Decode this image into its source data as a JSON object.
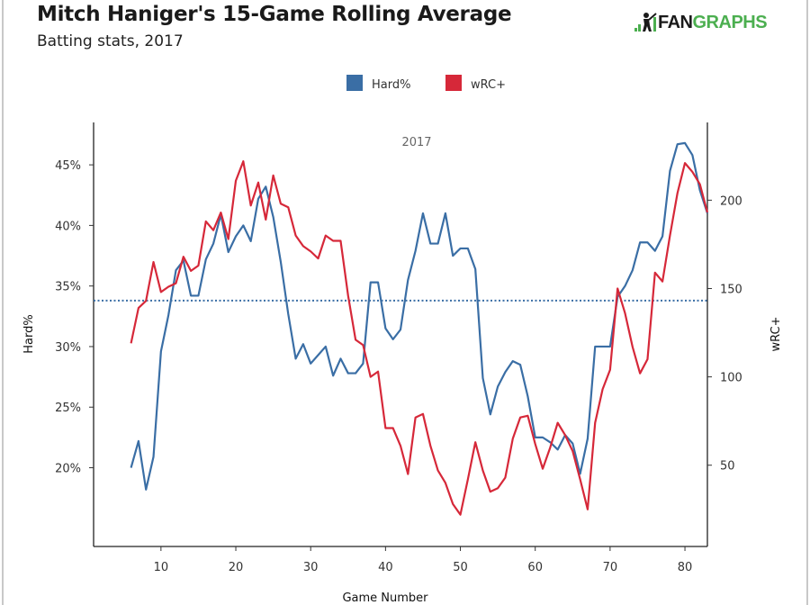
{
  "header": {
    "title": "Mitch Haniger's 15-Game Rolling Average",
    "subtitle": "Batting stats, 2017",
    "logo_text_dark": "FAN",
    "logo_text_green": "GRAPHS"
  },
  "colors": {
    "hard": "#3a6ea5",
    "wrc": "#d62839",
    "logo_green": "#4caf50"
  },
  "chart_data": {
    "type": "line",
    "title": "Mitch Haniger's 15-Game Rolling Average",
    "subtitle": "Batting stats, 2017",
    "facet_label": "2017",
    "xlabel": "Game Number",
    "ylabel_left": "Hard%",
    "ylabel_right": "wRC+",
    "legend_position": "top-center",
    "grid": false,
    "xlim": [
      1,
      83
    ],
    "ylim_left": [
      13.5,
      48.5
    ],
    "ylim_right": [
      4,
      244
    ],
    "x_ticks": [
      10,
      20,
      30,
      40,
      50,
      60,
      70,
      80
    ],
    "y_ticks_left": [
      {
        "value": 20,
        "label": "20%"
      },
      {
        "value": 25,
        "label": "25%"
      },
      {
        "value": 30,
        "label": "30%"
      },
      {
        "value": 35,
        "label": "35%"
      },
      {
        "value": 40,
        "label": "40%"
      },
      {
        "value": 45,
        "label": "45%"
      }
    ],
    "y_ticks_right": [
      50,
      100,
      150,
      200
    ],
    "reference_line": {
      "series": "Hard%",
      "value": 33.8,
      "style": "dotted"
    },
    "x": [
      6,
      7,
      8,
      9,
      10,
      11,
      12,
      13,
      14,
      15,
      16,
      17,
      18,
      19,
      20,
      21,
      22,
      23,
      24,
      25,
      26,
      27,
      28,
      29,
      30,
      31,
      32,
      33,
      34,
      35,
      36,
      37,
      38,
      39,
      40,
      41,
      42,
      43,
      44,
      45,
      46,
      47,
      48,
      49,
      50,
      51,
      52,
      53,
      54,
      55,
      56,
      57,
      58,
      59,
      60,
      61,
      62,
      63,
      64,
      65,
      66,
      67,
      68,
      69,
      70,
      71,
      72,
      73,
      74,
      75,
      76,
      77,
      78,
      79,
      80,
      81,
      82,
      83
    ],
    "series": [
      {
        "name": "Hard%",
        "axis": "left",
        "values": [
          20.0,
          22.2,
          18.2,
          20.9,
          29.6,
          32.6,
          36.3,
          37.1,
          34.2,
          34.2,
          37.2,
          38.5,
          40.9,
          37.8,
          39.1,
          40.0,
          38.7,
          42.2,
          43.2,
          40.7,
          37.0,
          32.7,
          29.0,
          30.2,
          28.6,
          29.3,
          30.0,
          27.6,
          29.0,
          27.8,
          27.8,
          28.6,
          35.3,
          35.3,
          31.5,
          30.6,
          31.4,
          35.5,
          37.9,
          41.0,
          38.5,
          38.5,
          41.0,
          37.5,
          38.1,
          38.1,
          36.4,
          27.4,
          24.4,
          26.7,
          27.9,
          28.8,
          28.5,
          25.9,
          22.5,
          22.5,
          22.1,
          21.5,
          22.7,
          22.0,
          19.5,
          22.4,
          30.0,
          30.0,
          30.0,
          34.1,
          35.0,
          36.3,
          38.6,
          38.6,
          37.9,
          39.1,
          44.5,
          46.7,
          46.8,
          45.8,
          42.9,
          41.0
        ]
      },
      {
        "name": "wRC+",
        "axis": "right",
        "values": [
          119,
          139,
          143,
          165,
          148,
          151,
          153,
          168,
          160,
          163,
          188,
          183,
          193,
          178,
          211,
          222,
          197,
          210,
          189,
          214,
          198,
          196,
          180,
          174,
          171,
          167,
          180,
          177,
          177,
          146,
          121,
          118,
          100,
          103,
          71,
          71,
          61,
          45,
          77,
          79,
          61,
          47,
          40,
          28,
          22,
          42,
          63,
          47,
          35,
          37,
          43,
          65,
          77,
          78,
          62,
          48,
          60,
          74,
          67,
          58,
          42,
          25,
          74,
          93,
          104,
          150,
          136,
          117,
          102,
          110,
          159,
          154,
          180,
          204,
          221,
          216,
          209,
          193
        ]
      }
    ]
  }
}
